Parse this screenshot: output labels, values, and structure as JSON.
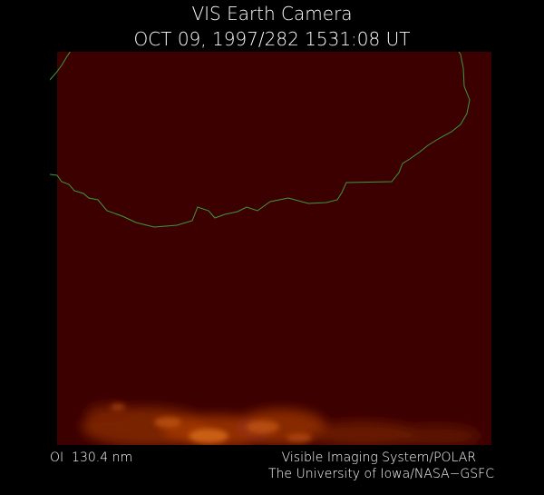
{
  "title": "VIS Earth Camera",
  "timestamp": "OCT 09, 1997/282 1531:08 UT",
  "wavelength": "OI  130.4 nm",
  "credit": {
    "line1": "Visible Imaging System/POLAR",
    "line2": "The University of Iowa/NASA−GSFC"
  }
}
